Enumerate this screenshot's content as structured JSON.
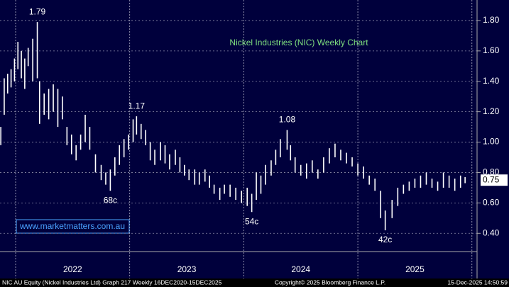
{
  "chart_data": {
    "type": "range-bar",
    "title": "Nickel Industries (NIC) Weekly Chart",
    "watermark": "www.marketmatters.com.au",
    "footer_left": "NIC AU Equity (Nickel Industries Ltd) Graph 217 Weekly 16DEC2020-15DEC2025",
    "footer_center": "Copyright© 2025 Bloomberg Finance L.P.",
    "footer_right": "15-Dec-2025 14:50:59",
    "color": "#ffffff",
    "grid": true,
    "xlim": [
      2021.863,
      2026.045
    ],
    "xticks": [
      {
        "value": 2022.5,
        "label": "2022"
      },
      {
        "value": 2023.5,
        "label": "2023"
      },
      {
        "value": 2024.5,
        "label": "2024"
      },
      {
        "value": 2025.5,
        "label": "2025"
      }
    ],
    "year_separators": [
      2022,
      2023,
      2024,
      2025,
      2026
    ],
    "ylim": [
      0.28,
      1.935
    ],
    "yticks": [
      {
        "value": 0.4,
        "label": "0.40"
      },
      {
        "value": 0.6,
        "label": "0.60"
      },
      {
        "value": 0.8,
        "label": "0.80"
      },
      {
        "value": 1.0,
        "label": "1.00"
      },
      {
        "value": 1.2,
        "label": "1.20"
      },
      {
        "value": 1.4,
        "label": "1.40"
      },
      {
        "value": 1.6,
        "label": "1.60"
      },
      {
        "value": 1.8,
        "label": "1.80"
      }
    ],
    "last_value": 0.75,
    "x": [
      2021.87,
      2021.9,
      2021.93,
      2021.96,
      2021.99,
      2022.02,
      2022.05,
      2022.08,
      2022.11,
      2022.15,
      2022.19,
      2022.21,
      2022.25,
      2022.29,
      2022.33,
      2022.37,
      2022.41,
      2022.45,
      2022.49,
      2022.53,
      2022.57,
      2022.61,
      2022.65,
      2022.7,
      2022.75,
      2022.79,
      2022.83,
      2022.87,
      2022.91,
      2022.95,
      2022.99,
      2023.03,
      2023.06,
      2023.1,
      2023.14,
      2023.18,
      2023.22,
      2023.27,
      2023.31,
      2023.35,
      2023.4,
      2023.44,
      2023.48,
      2023.52,
      2023.57,
      2023.61,
      2023.66,
      2023.7,
      2023.74,
      2023.79,
      2023.83,
      2023.88,
      2023.93,
      2023.98,
      2024.03,
      2024.07,
      2024.11,
      2024.15,
      2024.19,
      2024.24,
      2024.28,
      2024.32,
      2024.38,
      2024.41,
      2024.45,
      2024.5,
      2024.55,
      2024.6,
      2024.65,
      2024.7,
      2024.75,
      2024.8,
      2024.85,
      2024.9,
      2024.95,
      2025.0,
      2025.05,
      2025.1,
      2025.15,
      2025.2,
      2025.24,
      2025.3,
      2025.35,
      2025.4,
      2025.45,
      2025.5,
      2025.55,
      2025.6,
      2025.65,
      2025.7,
      2025.75,
      2025.8,
      2025.85,
      2025.9,
      2025.94
    ],
    "high": [
      1.1,
      1.42,
      1.45,
      1.48,
      1.55,
      1.66,
      1.6,
      1.55,
      1.62,
      1.68,
      1.79,
      1.4,
      1.32,
      1.35,
      1.38,
      1.35,
      1.3,
      1.1,
      1.05,
      0.98,
      1.05,
      1.18,
      1.1,
      0.92,
      0.85,
      0.8,
      0.82,
      0.9,
      0.98,
      1.02,
      1.05,
      1.15,
      1.17,
      1.12,
      1.08,
      1.0,
      0.95,
      1.0,
      0.98,
      0.92,
      0.95,
      0.9,
      0.85,
      0.82,
      0.82,
      0.8,
      0.82,
      0.78,
      0.72,
      0.7,
      0.72,
      0.72,
      0.7,
      0.68,
      0.7,
      0.66,
      0.8,
      0.78,
      0.85,
      0.88,
      0.95,
      1.02,
      1.08,
      0.98,
      0.9,
      0.85,
      0.86,
      0.88,
      0.82,
      0.9,
      0.96,
      0.99,
      0.95,
      0.93,
      0.9,
      0.86,
      0.84,
      0.78,
      0.76,
      0.68,
      0.55,
      0.62,
      0.7,
      0.72,
      0.74,
      0.76,
      0.78,
      0.8,
      0.76,
      0.74,
      0.8,
      0.78,
      0.76,
      0.78,
      0.77
    ],
    "low": [
      0.98,
      1.18,
      1.32,
      1.36,
      1.4,
      1.48,
      1.42,
      1.35,
      1.5,
      1.4,
      1.42,
      1.12,
      1.18,
      1.15,
      1.2,
      1.1,
      1.15,
      0.98,
      0.92,
      0.88,
      0.95,
      1.0,
      0.95,
      0.8,
      0.75,
      0.72,
      0.68,
      0.78,
      0.85,
      0.9,
      0.95,
      1.0,
      1.05,
      1.02,
      0.98,
      0.88,
      0.85,
      0.88,
      0.86,
      0.82,
      0.85,
      0.8,
      0.78,
      0.75,
      0.72,
      0.72,
      0.74,
      0.7,
      0.66,
      0.62,
      0.66,
      0.64,
      0.62,
      0.6,
      0.58,
      0.54,
      0.62,
      0.66,
      0.72,
      0.78,
      0.85,
      0.9,
      0.95,
      0.88,
      0.8,
      0.78,
      0.76,
      0.8,
      0.76,
      0.8,
      0.86,
      0.9,
      0.88,
      0.86,
      0.84,
      0.78,
      0.76,
      0.72,
      0.68,
      0.5,
      0.42,
      0.5,
      0.58,
      0.66,
      0.68,
      0.7,
      0.7,
      0.72,
      0.7,
      0.68,
      0.7,
      0.7,
      0.68,
      0.7,
      0.73
    ],
    "annotations": [
      {
        "text": "1.79",
        "x": 2022.19,
        "y": 1.79,
        "side": "above"
      },
      {
        "text": "1.17",
        "x": 2023.06,
        "y": 1.17,
        "side": "above"
      },
      {
        "text": "68c",
        "x": 2022.83,
        "y": 0.68,
        "side": "below"
      },
      {
        "text": "1.08",
        "x": 2024.38,
        "y": 1.08,
        "side": "above"
      },
      {
        "text": "54c",
        "x": 2024.07,
        "y": 0.54,
        "side": "below"
      },
      {
        "text": "42c",
        "x": 2025.24,
        "y": 0.42,
        "side": "below"
      }
    ]
  }
}
